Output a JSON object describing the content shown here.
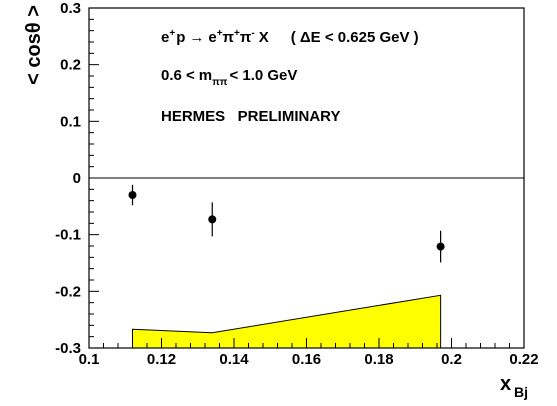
{
  "chart_data": {
    "type": "scatter",
    "title": "",
    "xlabel": "x",
    "xlabel_sub": "Bj",
    "ylabel": "< cosθ >",
    "xlim": [
      0.1,
      0.22
    ],
    "ylim": [
      -0.3,
      0.3
    ],
    "x_ticks": [
      0.1,
      0.12,
      0.14,
      0.16,
      0.18,
      0.2,
      0.22
    ],
    "x_tick_labels": [
      "0.1",
      "0.12",
      "0.14",
      "0.16",
      "0.18",
      "0.2",
      "0.22"
    ],
    "y_ticks": [
      -0.3,
      -0.2,
      -0.1,
      0,
      0.1,
      0.2,
      0.3
    ],
    "y_tick_labels": [
      "-0.3",
      "-0.2",
      "-0.1",
      "0",
      "0.1",
      "0.2",
      "0.3"
    ],
    "grid": false,
    "reference_line_y": 0,
    "series": [
      {
        "points": [
          {
            "x": 0.112,
            "y": -0.03,
            "err": 0.018
          },
          {
            "x": 0.134,
            "y": -0.073,
            "err": 0.03
          },
          {
            "x": 0.197,
            "y": -0.121,
            "err": 0.028
          }
        ]
      }
    ],
    "systematic_band": {
      "color": "#ffff00",
      "x": [
        0.112,
        0.134,
        0.197
      ],
      "upper": [
        -0.267,
        -0.273,
        -0.207
      ]
    },
    "annotations": {
      "reaction": {
        "beam": "e",
        "beam_sup": "+",
        "target": "p",
        "arrow": "→",
        "final_1": "e",
        "final_1_sup": "+",
        "final_2": "π",
        "final_2_sup": "+",
        "final_3": "π",
        "final_3_sup": "-",
        "final_rest": "X",
        "cut_open": "( ΔE < 0.625 GeV )"
      },
      "mass_cut": {
        "lower": "0.6 <",
        "m": "m",
        "m_sub": "ππ",
        "upper": "< 1.0  GeV"
      },
      "preliminary": "HERMES   PRELIMINARY"
    }
  }
}
